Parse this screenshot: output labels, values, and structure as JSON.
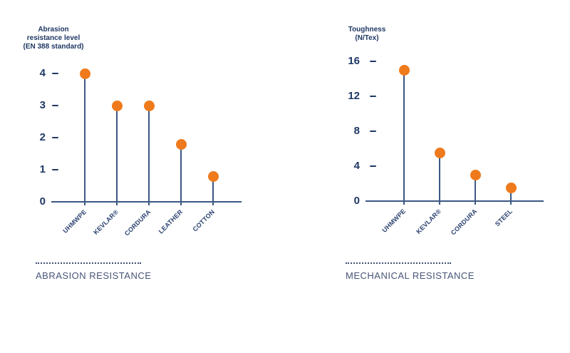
{
  "colors": {
    "orange": "#ef7a1c",
    "navy": "#1f3864",
    "axis": "#3b5884",
    "label": "#2c4270",
    "caption": "#475577",
    "dotted": "#3f4f74"
  },
  "display": {
    "left": {
      "axis_title": "Abrasion\nresistance level\n(EN 388 standard)",
      "caption": "ABRASION RESISTANCE"
    },
    "right": {
      "axis_title": "Toughness\n(N/Tex)",
      "caption": "MECHANICAL RESISTANCE"
    }
  },
  "chart_data": [
    {
      "type": "lollipop",
      "title": "Abrasion resistance level (EN 388 standard)",
      "caption": "ABRASION RESISTANCE",
      "categories": [
        "UHMWPE",
        "KEVLAR®",
        "CORDURA",
        "LEATHER",
        "COTTON"
      ],
      "values": [
        4,
        3,
        3,
        1.8,
        0.8
      ],
      "ylim": [
        0,
        4
      ],
      "yticks": [
        4,
        3,
        2,
        1,
        0
      ],
      "grid": false,
      "legend": false,
      "marker_color": "#ef7a1c"
    },
    {
      "type": "lollipop",
      "title": "Toughness (N/Tex)",
      "caption": "MECHANICAL RESISTANCE",
      "categories": [
        "UHMWPE",
        "KEVLAR®",
        "CORDURA",
        "STEEL"
      ],
      "values": [
        15,
        5.5,
        3,
        1.5
      ],
      "ylim": [
        0,
        16
      ],
      "yticks": [
        16,
        12,
        8,
        4,
        0
      ],
      "grid": false,
      "legend": false,
      "marker_color": "#ef7a1c"
    }
  ]
}
